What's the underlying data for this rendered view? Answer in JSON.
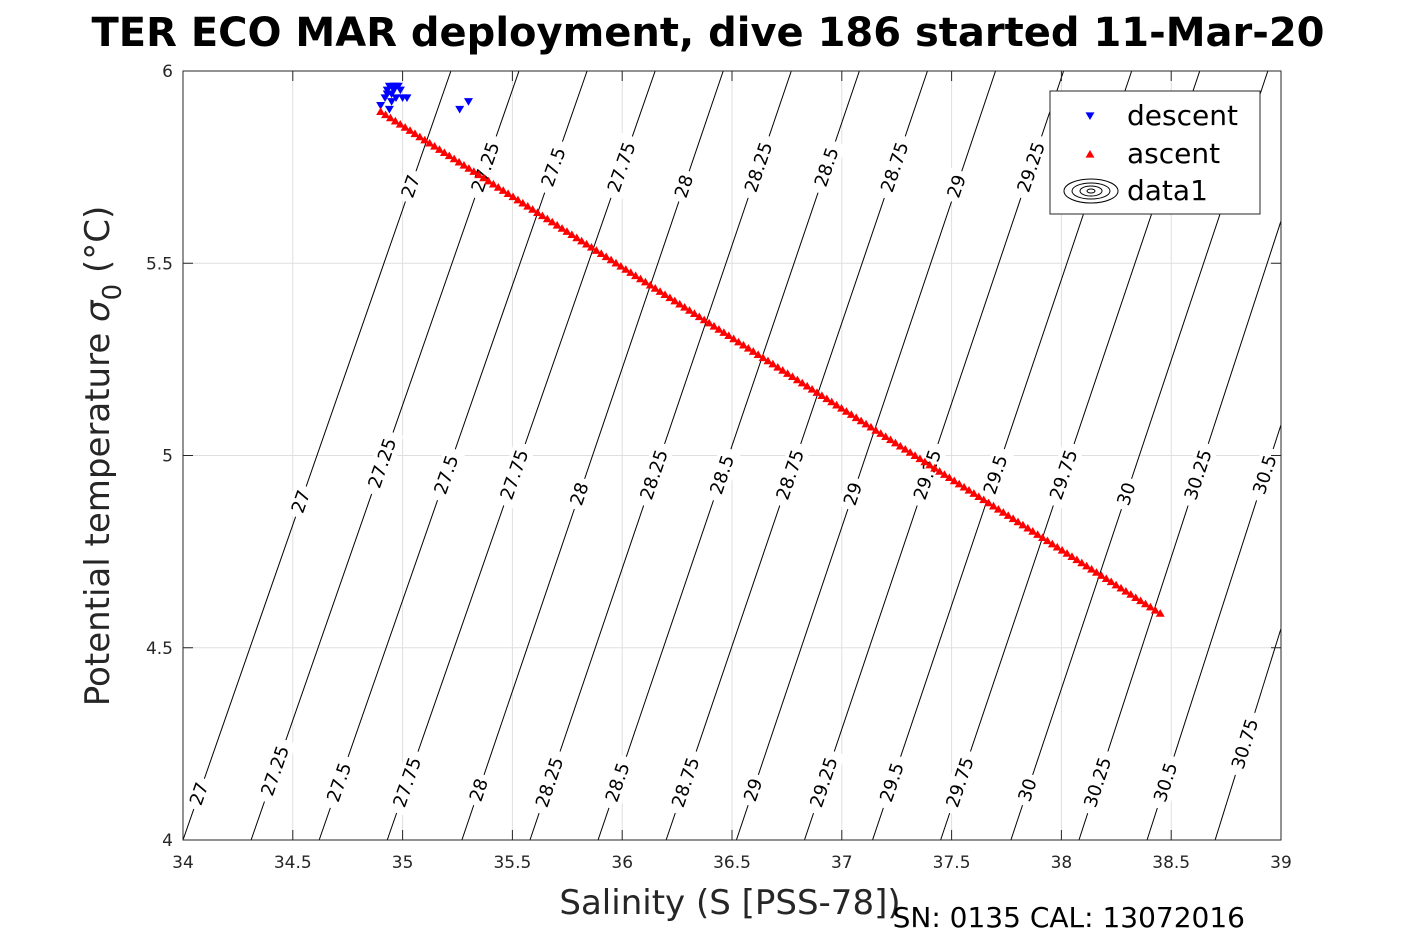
{
  "chart_data": {
    "type": "scatter",
    "title": "TER ECO MAR deployment, dive 186 started 11-Mar-20",
    "xlabel": "Salinity (S [PSS-78])",
    "ylabel_main": "Potential temperature ",
    "ylabel_sigma": "σ",
    "ylabel_sub": "0",
    "ylabel_unit": " (°C)",
    "footer": "SN: 0135  CAL: 13072016",
    "xlim": [
      34,
      39
    ],
    "ylim": [
      4,
      6
    ],
    "xticks": [
      "34",
      "34.5",
      "35",
      "35.5",
      "36",
      "36.5",
      "37",
      "37.5",
      "38",
      "38.5",
      "39"
    ],
    "yticks": [
      "4",
      "4.5",
      "5",
      "5.5",
      "6"
    ],
    "grid": true,
    "legend_position": "top-right",
    "legend": [
      "descent",
      "ascent",
      "data1"
    ],
    "series": [
      {
        "name": "descent",
        "marker": "triangle-down",
        "color": "#0000ff",
        "points": [
          [
            34.9,
            5.91
          ],
          [
            34.92,
            5.93
          ],
          [
            34.93,
            5.95
          ],
          [
            34.94,
            5.96
          ],
          [
            34.95,
            5.94
          ],
          [
            34.96,
            5.96
          ],
          [
            34.97,
            5.96
          ],
          [
            34.98,
            5.96
          ],
          [
            34.99,
            5.95
          ],
          [
            34.95,
            5.92
          ],
          [
            34.94,
            5.9
          ],
          [
            34.97,
            5.93
          ],
          [
            35.0,
            5.93
          ],
          [
            35.02,
            5.93
          ],
          [
            35.26,
            5.9
          ],
          [
            35.3,
            5.92
          ],
          [
            34.93,
            5.94
          ],
          [
            34.96,
            5.95
          ]
        ]
      },
      {
        "name": "ascent",
        "marker": "triangle-up",
        "color": "#ff0000",
        "start": [
          34.9,
          5.895
        ],
        "end": [
          38.45,
          4.59
        ],
        "count": 160
      }
    ],
    "contours": [
      {
        "label": "27",
        "pts": [
          [
            34.0,
            4.0
          ],
          [
            35.22,
            6.0
          ]
        ],
        "labels_at": [
          4.12,
          4.88,
          5.7
        ]
      },
      {
        "label": "27.25",
        "pts": [
          [
            34.31,
            4.0
          ],
          [
            35.53,
            6.0
          ]
        ],
        "labels_at": [
          4.18,
          4.98,
          5.75
        ]
      },
      {
        "label": "27.5",
        "pts": [
          [
            34.62,
            4.0
          ],
          [
            35.84,
            6.0
          ]
        ],
        "labels_at": [
          4.15,
          4.95,
          5.75
        ]
      },
      {
        "label": "27.75",
        "pts": [
          [
            34.93,
            4.0
          ],
          [
            36.15,
            6.0
          ]
        ],
        "labels_at": [
          4.15,
          4.95,
          5.75
        ]
      },
      {
        "label": "28",
        "pts": [
          [
            35.27,
            4.0
          ],
          [
            36.46,
            6.0
          ]
        ],
        "labels_at": [
          4.13,
          4.9,
          5.7
        ]
      },
      {
        "label": "28.25",
        "pts": [
          [
            35.58,
            4.0
          ],
          [
            36.77,
            6.0
          ]
        ],
        "labels_at": [
          4.15,
          4.95,
          5.75
        ]
      },
      {
        "label": "28.5",
        "pts": [
          [
            35.89,
            4.0
          ],
          [
            37.08,
            6.0
          ]
        ],
        "labels_at": [
          4.15,
          4.95,
          5.75
        ]
      },
      {
        "label": "28.75",
        "pts": [
          [
            36.2,
            4.0
          ],
          [
            37.39,
            6.0
          ]
        ],
        "labels_at": [
          4.15,
          4.95,
          5.75
        ]
      },
      {
        "label": "29",
        "pts": [
          [
            36.52,
            4.0
          ],
          [
            37.7,
            6.0
          ]
        ],
        "labels_at": [
          4.13,
          4.9,
          5.7
        ]
      },
      {
        "label": "29.25",
        "pts": [
          [
            36.83,
            4.0
          ],
          [
            38.01,
            6.0
          ]
        ],
        "labels_at": [
          4.15,
          4.95,
          5.75
        ]
      },
      {
        "label": "29.5",
        "pts": [
          [
            37.14,
            4.0
          ],
          [
            38.32,
            6.0
          ]
        ],
        "labels_at": [
          4.15,
          4.95,
          5.75
        ]
      },
      {
        "label": "29.75",
        "pts": [
          [
            37.45,
            4.0
          ],
          [
            38.63,
            6.0
          ]
        ],
        "labels_at": [
          4.15,
          4.95,
          5.75
        ]
      },
      {
        "label": "30",
        "pts": [
          [
            37.77,
            4.0
          ],
          [
            38.94,
            6.0
          ]
        ],
        "labels_at": [
          4.13,
          4.9
        ]
      },
      {
        "label": "30.25",
        "pts": [
          [
            38.08,
            4.0
          ],
          [
            39.0,
            5.61
          ]
        ],
        "labels_at": [
          4.15,
          4.95
        ]
      },
      {
        "label": "30.5",
        "pts": [
          [
            38.39,
            4.0
          ],
          [
            39.0,
            5.08
          ]
        ],
        "labels_at": [
          4.15,
          4.95
        ]
      },
      {
        "label": "30.75",
        "pts": [
          [
            38.7,
            4.0
          ],
          [
            39.0,
            4.55
          ]
        ],
        "labels_at": [
          4.25,
          5.0
        ]
      }
    ]
  }
}
